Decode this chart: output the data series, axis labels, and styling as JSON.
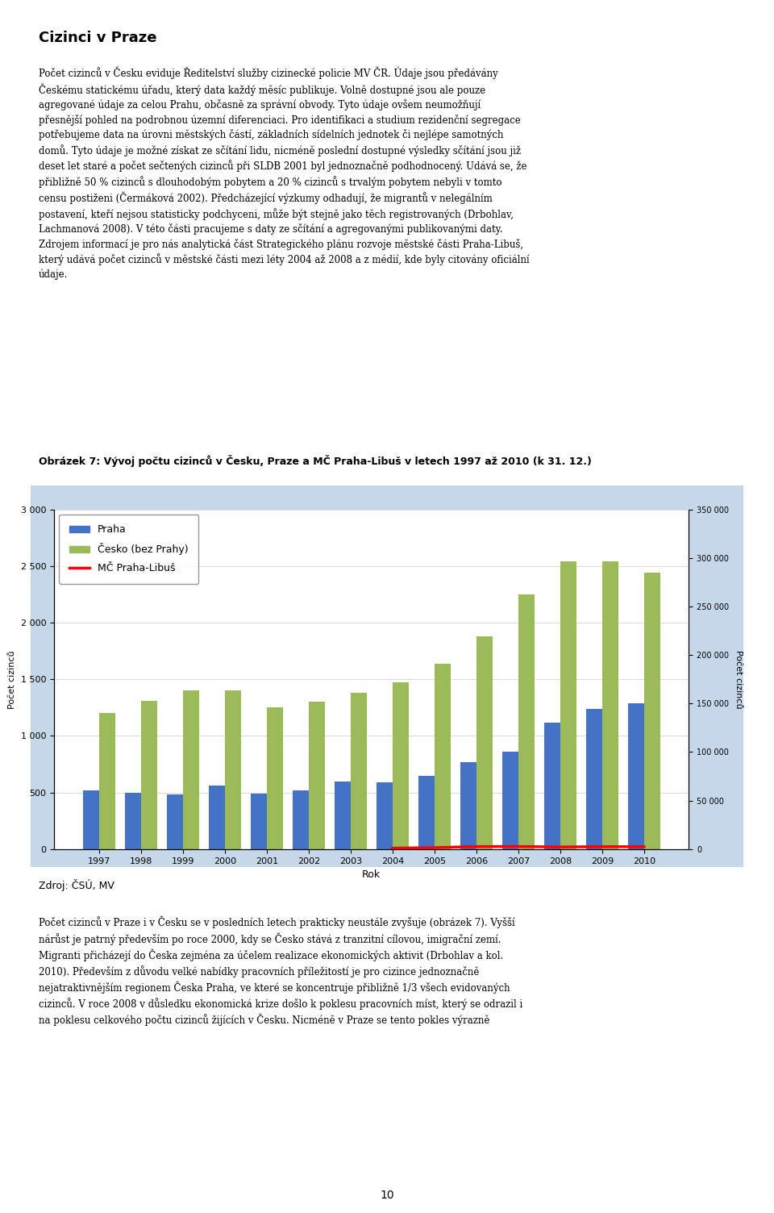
{
  "years": [
    1997,
    1998,
    1999,
    2000,
    2001,
    2002,
    2003,
    2004,
    2005,
    2006,
    2007,
    2008,
    2009,
    2010
  ],
  "praha": [
    520,
    500,
    480,
    560,
    490,
    520,
    600,
    590,
    650,
    770,
    860,
    1120,
    1240,
    1290
  ],
  "cesko_bez_prahy": [
    1200,
    1310,
    1400,
    1400,
    1250,
    1300,
    1380,
    1470,
    1640,
    1880,
    2250,
    2540,
    2540,
    2440
  ],
  "libus_years": [
    2004,
    2005,
    2006,
    2007,
    2008,
    2009,
    2010
  ],
  "libus_values": [
    1000,
    1500,
    2600,
    2700,
    2150,
    2520,
    2430
  ],
  "bar_width": 0.38,
  "left_ylim": [
    0,
    3000
  ],
  "right_ylim": [
    0,
    350000
  ],
  "left_yticks": [
    0,
    500,
    1000,
    1500,
    2000,
    2500,
    3000
  ],
  "right_yticks": [
    0,
    50000,
    100000,
    150000,
    200000,
    250000,
    300000,
    350000
  ],
  "left_ylabel": "Počet cizinců",
  "right_ylabel": "Počet cizinců",
  "xlabel": "Rok",
  "color_praha": "#4472C4",
  "color_cesko": "#9BBB59",
  "color_libus": "#FF0000",
  "background_outer": "#C5D7E8",
  "background_inner": "#FFFFFF",
  "legend_labels": [
    "Praha",
    "Česko (bez Prahy)",
    "MČ Praha-Libuš"
  ],
  "title_caption": "Obrázek 7: Vývoj počtu cizinců v Česku, Praze a MČ Praha-Libuš v letech 1997 až 2010 (k 31. 12.)",
  "source_text": "Zdroj: ČSÚ, MV",
  "scale_factor": 116.67
}
